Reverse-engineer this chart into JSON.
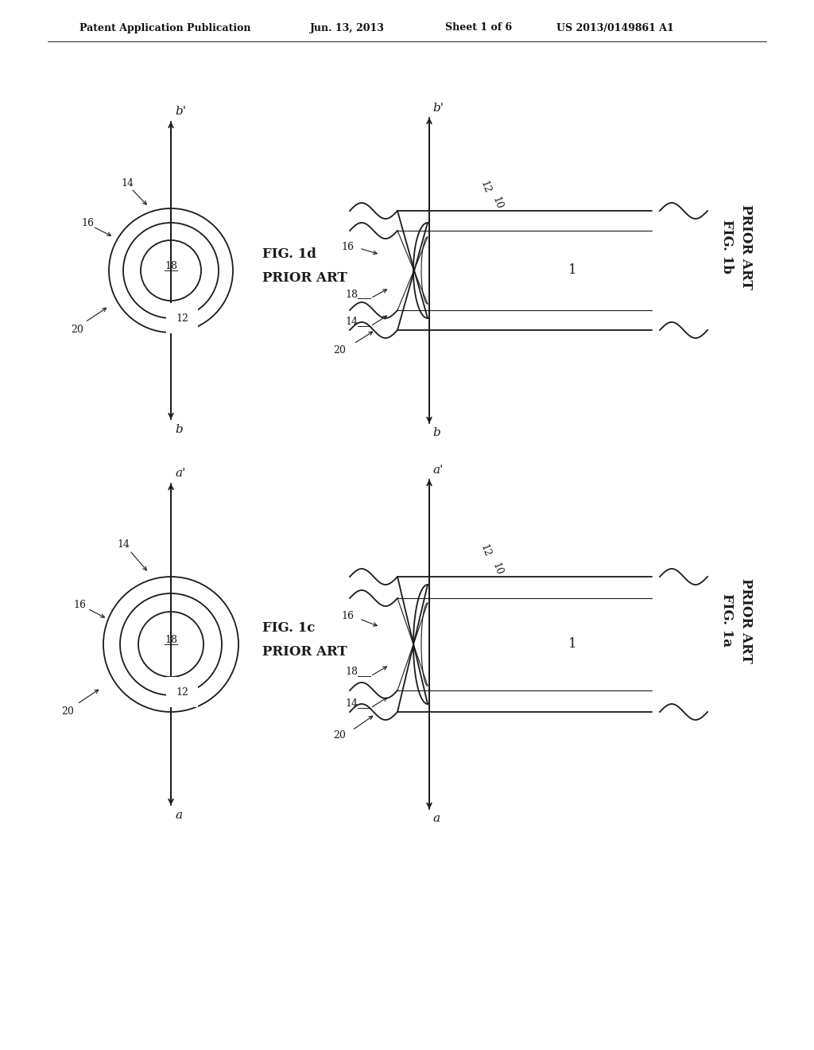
{
  "bg_color": "#ffffff",
  "line_color": "#1a1a1a",
  "header_line1": "Patent Application Publication",
  "header_line2": "Jun. 13, 2013",
  "header_line3": "Sheet 1 of 6",
  "header_line4": "US 2013/0149861 A1"
}
